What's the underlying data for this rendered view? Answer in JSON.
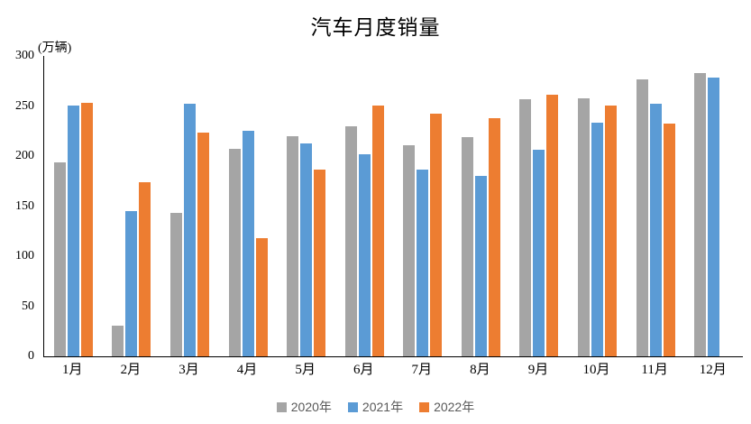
{
  "title": "汽车月度销量",
  "y_axis_unit_label": "(万辆)",
  "legend": {
    "items": [
      {
        "label": "2020年",
        "color": "#A5A5A5"
      },
      {
        "label": "2021年",
        "color": "#5B9BD5"
      },
      {
        "label": "2022年",
        "color": "#ED7D31"
      }
    ]
  },
  "chart_data": {
    "type": "bar",
    "title": "汽车月度销量",
    "ylabel": "(万辆)",
    "categories": [
      "1月",
      "2月",
      "3月",
      "4月",
      "5月",
      "6月",
      "7月",
      "8月",
      "9月",
      "10月",
      "11月",
      "12月"
    ],
    "series": [
      {
        "name": "2020年",
        "color": "#A5A5A5",
        "values": [
          194.1,
          31.0,
          143.0,
          207.0,
          219.4,
          230.0,
          211.2,
          218.6,
          256.5,
          257.3,
          277.0,
          283.1
        ]
      },
      {
        "name": "2021年",
        "color": "#5B9BD5",
        "values": [
          250.3,
          145.5,
          252.6,
          225.2,
          212.8,
          201.5,
          186.4,
          179.9,
          206.7,
          233.3,
          252.2,
          278.6
        ]
      },
      {
        "name": "2022年",
        "color": "#ED7D31",
        "values": [
          253.1,
          173.8,
          223.4,
          118.1,
          186.2,
          250.2,
          242.0,
          238.3,
          261.0,
          250.5,
          232.8,
          null
        ]
      }
    ],
    "ylim": [
      0,
      300
    ],
    "yticks": [
      0,
      50,
      100,
      150,
      200,
      250,
      300
    ],
    "grid": false,
    "legend_position": "bottom",
    "axis_color": "#000000",
    "legend_text_color": "#595959"
  }
}
